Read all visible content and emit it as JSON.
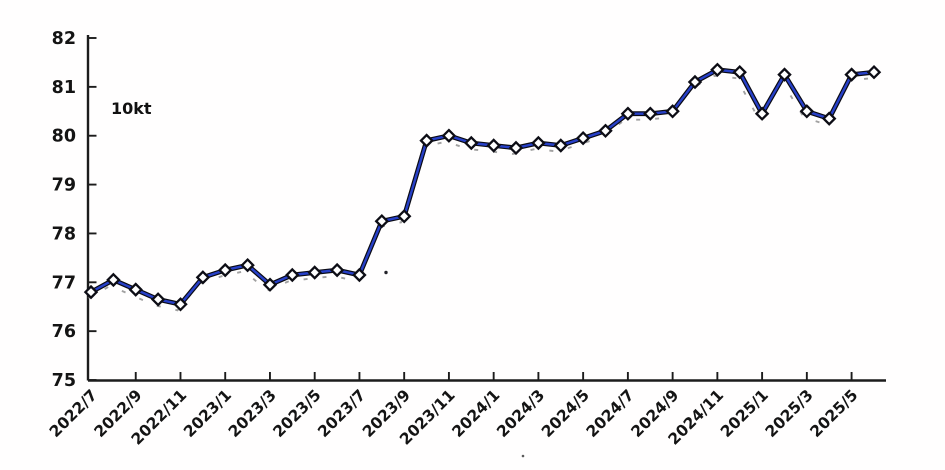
{
  "chart_data": {
    "type": "line",
    "title": "",
    "unit_label": "10kt",
    "x": [
      "2022/7",
      "2022/8",
      "2022/9",
      "2022/10",
      "2022/11",
      "2022/12",
      "2023/1",
      "2023/2",
      "2023/3",
      "2023/4",
      "2023/5",
      "2023/6",
      "2023/7",
      "2023/8",
      "2023/9",
      "2023/10",
      "2023/11",
      "2023/12",
      "2024/1",
      "2024/2",
      "2024/3",
      "2024/4",
      "2024/5",
      "2024/6",
      "2024/7",
      "2024/8",
      "2024/9",
      "2024/10",
      "2024/11",
      "2024/12",
      "2025/1",
      "2025/2",
      "2025/3",
      "2025/4",
      "2025/5",
      "2025/6"
    ],
    "values": [
      76.8,
      77.05,
      76.85,
      76.65,
      76.55,
      77.1,
      77.25,
      77.35,
      76.95,
      77.15,
      77.2,
      77.25,
      77.15,
      78.25,
      78.35,
      79.9,
      80.0,
      79.85,
      79.8,
      79.75,
      79.85,
      79.8,
      79.95,
      80.1,
      80.45,
      80.45,
      80.5,
      81.1,
      81.35,
      81.3,
      80.45,
      81.25,
      80.5,
      80.35,
      81.25,
      81.3
    ],
    "xtick_labels": [
      "2022/7",
      "2022/9",
      "2022/11",
      "2023/1",
      "2023/3",
      "2023/5",
      "2023/7",
      "2023/9",
      "2023/11",
      "2024/1",
      "2024/3",
      "2024/5",
      "2024/7",
      "2024/9",
      "2024/11",
      "2025/1",
      "2025/3",
      "2025/5"
    ],
    "yticks": [
      82,
      81,
      80,
      79,
      78,
      77,
      76,
      75
    ],
    "ylim": [
      75,
      82
    ],
    "grid": false,
    "legend_position": "none",
    "line_color": "#2740c8",
    "line_edge_color": "#0a0a14",
    "marker_shape": "diamond",
    "marker_fill": "#ffffff",
    "marker_stroke": "#0d0d15",
    "ghost_color": "#6f6f6f",
    "axis_color": "#1c1c1c",
    "text_color": "#141414"
  }
}
